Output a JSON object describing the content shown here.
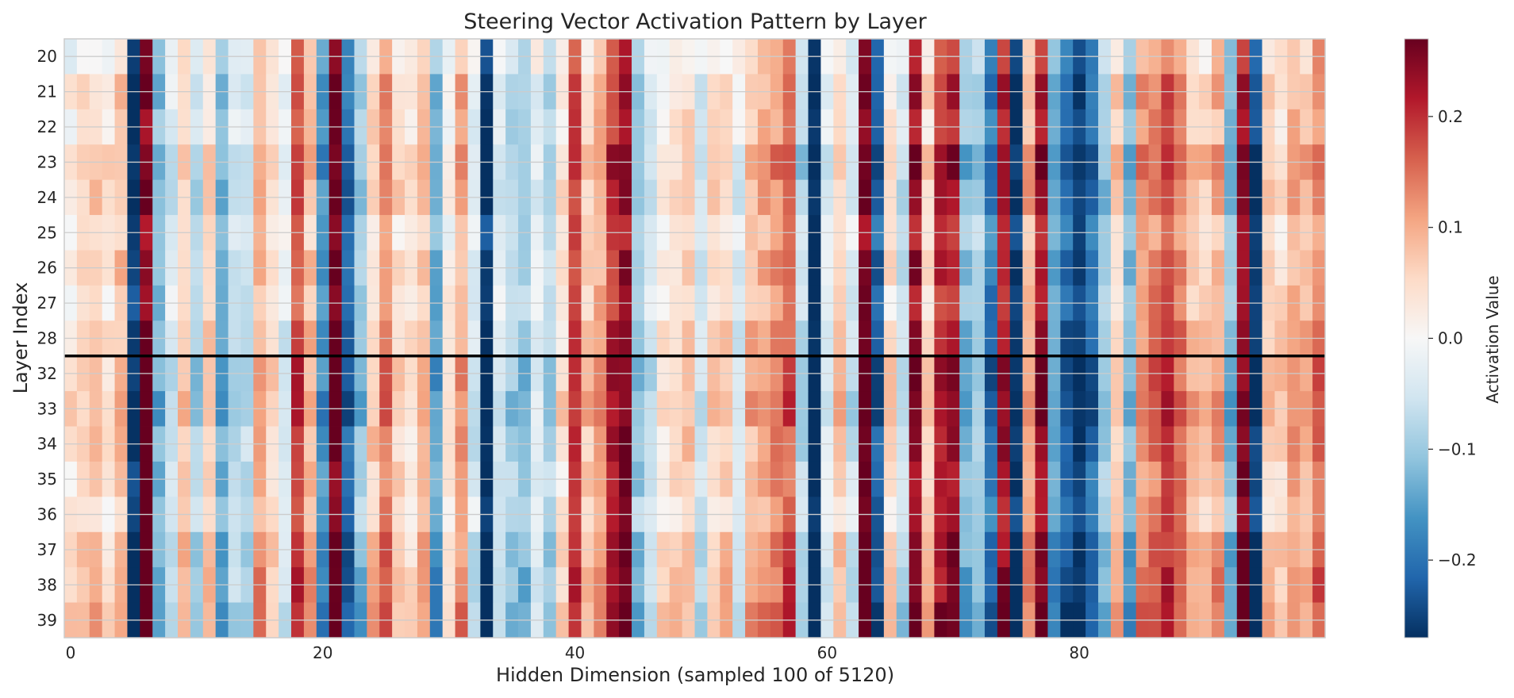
{
  "chart_data": {
    "type": "heatmap",
    "title": "Steering Vector Activation Pattern by Layer",
    "xlabel": "Hidden Dimension (sampled 100 of 5120)",
    "ylabel": "Layer Index",
    "x_ticks": [
      "0",
      "20",
      "40",
      "60",
      "80"
    ],
    "x_tick_values": [
      0,
      20,
      40,
      60,
      80
    ],
    "y_ticks": [
      "20",
      "21",
      "22",
      "23",
      "24",
      "25",
      "26",
      "27",
      "28",
      "32",
      "33",
      "34",
      "35",
      "36",
      "37",
      "38",
      "39"
    ],
    "n_columns": 100,
    "colormap": "RdBu_r",
    "vmin": -0.27,
    "vmax": 0.27,
    "colorbar": {
      "label": "Activation Value",
      "ticks": [
        "−0.2",
        "−0.1",
        "0.0",
        "0.1",
        "0.2"
      ],
      "tick_values": [
        -0.2,
        -0.1,
        0.0,
        0.1,
        0.2
      ]
    },
    "separator_between_rows": [
      "28",
      "32"
    ],
    "grid": true,
    "column_values": [
      0.02,
      0.05,
      0.06,
      0.03,
      0.08,
      -0.26,
      0.26,
      -0.12,
      -0.04,
      0.06,
      -0.08,
      0.05,
      -0.12,
      -0.05,
      -0.06,
      0.1,
      0.04,
      -0.04,
      0.18,
      0.08,
      -0.15,
      0.26,
      -0.2,
      -0.1,
      0.06,
      0.14,
      0.05,
      0.03,
      0.08,
      -0.14,
      0.02,
      0.1,
      -0.04,
      -0.27,
      -0.04,
      -0.08,
      -0.1,
      -0.02,
      -0.08,
      0.03,
      0.18,
      0.06,
      0.1,
      0.2,
      0.24,
      -0.1,
      -0.05,
      0.02,
      0.04,
      0.06,
      -0.05,
      0.05,
      0.06,
      -0.03,
      0.08,
      0.1,
      0.12,
      0.16,
      -0.08,
      -0.27,
      -0.02,
      0.06,
      -0.05,
      0.26,
      -0.22,
      0.04,
      -0.06,
      0.24,
      0.05,
      0.2,
      0.22,
      -0.12,
      -0.08,
      -0.2,
      0.22,
      -0.26,
      0.1,
      0.24,
      -0.14,
      -0.22,
      -0.25,
      -0.2,
      -0.1,
      0.06,
      -0.12,
      0.12,
      0.14,
      0.18,
      0.14,
      0.08,
      0.06,
      0.1,
      -0.12,
      0.24,
      -0.26,
      0.06,
      0.05,
      0.1,
      0.08,
      0.14
    ],
    "row_offsets": [
      -0.03,
      0.0,
      -0.01,
      0.02,
      0.01,
      -0.02,
      0.0,
      -0.01,
      0.01,
      0.02,
      0.03,
      0.01,
      0.0,
      -0.01,
      0.02,
      0.03,
      0.04
    ]
  }
}
